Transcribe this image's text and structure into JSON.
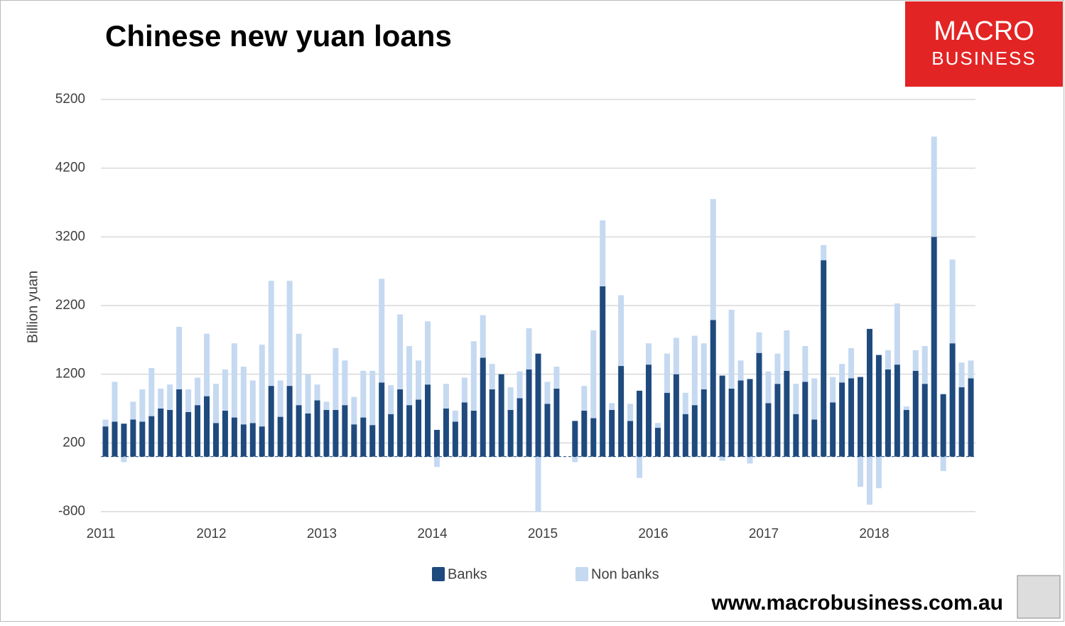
{
  "chart_data": {
    "type": "stacked_bar",
    "title": "Chinese new yuan loans",
    "y_label": "Billion yuan",
    "brand": [
      "MACRO",
      "BUSINESS"
    ],
    "source_url": "www.macrobusiness.com.au",
    "categories": [
      "2011",
      null,
      null,
      null,
      null,
      null,
      null,
      null,
      null,
      null,
      null,
      null,
      "2012",
      null,
      null,
      null,
      null,
      null,
      null,
      null,
      null,
      null,
      null,
      null,
      "2013",
      null,
      null,
      null,
      null,
      null,
      null,
      null,
      null,
      null,
      null,
      null,
      "2014",
      null,
      null,
      null,
      null,
      null,
      null,
      null,
      null,
      null,
      null,
      null,
      "2015",
      null,
      null,
      null,
      null,
      null,
      null,
      null,
      null,
      null,
      null,
      null,
      "2016",
      null,
      null,
      null,
      null,
      null,
      null,
      null,
      null,
      null,
      null,
      null,
      "2017",
      null,
      null,
      null,
      null,
      null,
      null,
      null,
      null,
      null,
      null,
      null,
      "2018",
      null,
      null,
      null,
      null,
      null,
      null,
      null,
      null,
      null,
      null
    ],
    "series": [
      {
        "name": "Banks",
        "color": "#1f4a7e",
        "values": [
          440,
          510,
          480,
          540,
          510,
          590,
          700,
          680,
          980,
          650,
          750,
          880,
          490,
          670,
          570,
          470,
          490,
          440,
          1030,
          580,
          1030,
          750,
          630,
          820,
          680,
          680,
          750,
          470,
          570,
          460,
          1080,
          620,
          980,
          750,
          830,
          1050,
          390,
          700,
          510,
          790,
          670,
          1440,
          980,
          1200,
          680,
          850,
          1270,
          1500,
          770,
          990,
          null,
          520,
          670,
          560,
          2480,
          680,
          1320,
          520,
          960,
          1340,
          420,
          930,
          1200,
          620,
          750,
          980,
          1990,
          1180,
          990,
          1110,
          1130,
          1510,
          780,
          1060,
          1250,
          620,
          1090,
          540,
          2860,
          790,
          1080,
          1140,
          1160,
          1860,
          1480,
          1270,
          1340,
          680,
          1250,
          1060,
          3200,
          910,
          1650,
          1010,
          1140
        ]
      },
      {
        "name": "Non banks",
        "color": "#c5d9f1",
        "values": [
          100,
          580,
          -80,
          260,
          470,
          700,
          290,
          370,
          910,
          330,
          400,
          910,
          570,
          600,
          1080,
          840,
          620,
          1190,
          1530,
          530,
          1530,
          1040,
          570,
          230,
          120,
          900,
          650,
          400,
          680,
          790,
          1510,
          420,
          1090,
          860,
          570,
          920,
          -150,
          360,
          160,
          360,
          1010,
          620,
          370,
          0,
          330,
          390,
          600,
          -800,
          320,
          320,
          null,
          -80,
          360,
          1280,
          960,
          100,
          1030,
          250,
          -310,
          310,
          70,
          570,
          530,
          310,
          1010,
          670,
          1760,
          -60,
          1150,
          290,
          -100,
          300,
          460,
          440,
          590,
          440,
          520,
          600,
          220,
          370,
          270,
          440,
          -440,
          -700,
          -460,
          280,
          890,
          50,
          300,
          550,
          1460,
          -210,
          1220,
          360,
          260
        ]
      }
    ],
    "ylim": [
      -800,
      5200
    ],
    "yticks": [
      -800,
      200,
      1200,
      2200,
      3200,
      4200,
      5200
    ],
    "grid": true,
    "legend": "bottom"
  }
}
